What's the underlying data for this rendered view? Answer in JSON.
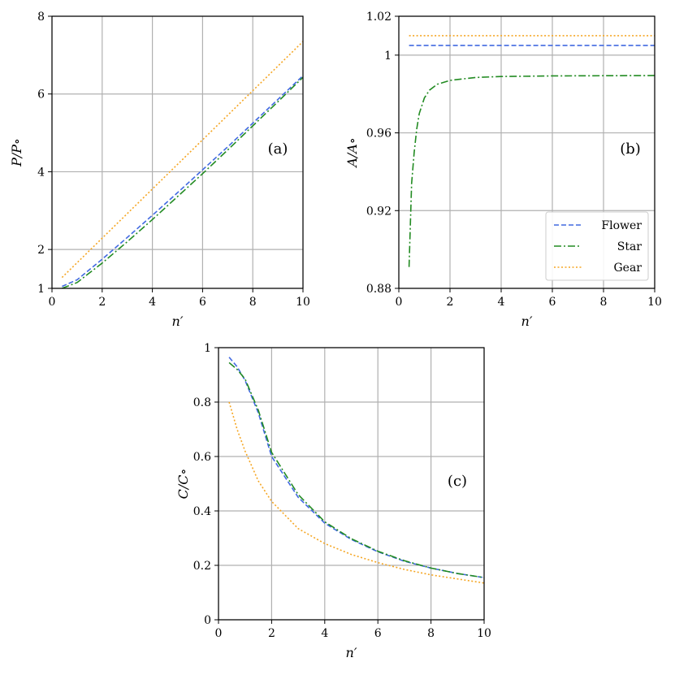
{
  "chart_data": [
    {
      "type": "line",
      "panel": "(a)",
      "xlabel": "n′",
      "ylabel": "P/P∘",
      "xlim": [
        0,
        10
      ],
      "ylim": [
        1,
        8
      ],
      "xticks": [
        0,
        2,
        4,
        6,
        8,
        10
      ],
      "yticks": [
        1,
        2,
        4,
        6,
        8
      ],
      "xtick_labels": [
        "0",
        "2",
        "4",
        "6",
        "8",
        "10"
      ],
      "ytick_labels": [
        "1",
        "2",
        "4",
        "6",
        "8"
      ],
      "grid": true,
      "series": [
        {
          "name": "Flower",
          "color": "#4169e1",
          "dash": "dashed",
          "x": [
            0.4,
            1,
            2,
            3,
            4,
            5,
            6,
            7,
            8,
            9,
            10
          ],
          "y": [
            1.05,
            1.22,
            1.75,
            2.31,
            2.88,
            3.46,
            4.05,
            4.64,
            5.25,
            5.86,
            6.47
          ]
        },
        {
          "name": "Star",
          "color": "#228b22",
          "dash": "dashdot",
          "x": [
            0.4,
            1,
            2,
            3,
            4,
            5,
            6,
            7,
            8,
            9,
            10
          ],
          "y": [
            1.0,
            1.15,
            1.65,
            2.2,
            2.77,
            3.36,
            3.95,
            4.56,
            5.18,
            5.8,
            6.43
          ]
        },
        {
          "name": "Gear",
          "color": "#f5a623",
          "dash": "dotted",
          "x": [
            0.4,
            10
          ],
          "y": [
            1.28,
            7.35
          ]
        }
      ]
    },
    {
      "type": "line",
      "panel": "(b)",
      "xlabel": "n′",
      "ylabel": "A/A∘",
      "xlim": [
        0,
        10
      ],
      "ylim": [
        0.88,
        1.02
      ],
      "xticks": [
        0,
        2,
        4,
        6,
        8,
        10
      ],
      "yticks": [
        0.88,
        0.92,
        0.96,
        1.0,
        1.02
      ],
      "xtick_labels": [
        "0",
        "2",
        "4",
        "6",
        "8",
        "10"
      ],
      "ytick_labels": [
        "0.88",
        "0.92",
        "0.96",
        "1",
        "1.02"
      ],
      "grid": true,
      "legend": "bottom-right",
      "series": [
        {
          "name": "Flower",
          "color": "#4169e1",
          "dash": "dashed",
          "x": [
            0.4,
            10
          ],
          "y": [
            1.005,
            1.005
          ]
        },
        {
          "name": "Star",
          "color": "#228b22",
          "dash": "dashdot",
          "x": [
            0.4,
            0.5,
            0.6,
            0.7,
            0.8,
            1.0,
            1.2,
            1.5,
            2,
            3,
            4,
            6,
            8,
            10
          ],
          "y": [
            0.891,
            0.934,
            0.95,
            0.962,
            0.97,
            0.978,
            0.982,
            0.985,
            0.987,
            0.9885,
            0.989,
            0.9893,
            0.9894,
            0.9895
          ]
        },
        {
          "name": "Gear",
          "color": "#f5a623",
          "dash": "dotted",
          "x": [
            0.4,
            10
          ],
          "y": [
            1.01,
            1.01
          ]
        }
      ]
    },
    {
      "type": "line",
      "panel": "(c)",
      "xlabel": "n′",
      "ylabel": "C/C∘",
      "xlim": [
        0,
        10
      ],
      "ylim": [
        0,
        1
      ],
      "xticks": [
        0,
        2,
        4,
        6,
        8,
        10
      ],
      "yticks": [
        0,
        0.2,
        0.4,
        0.6,
        0.8,
        1
      ],
      "xtick_labels": [
        "0",
        "2",
        "4",
        "6",
        "8",
        "10"
      ],
      "ytick_labels": [
        "0",
        "0.2",
        "0.4",
        "0.6",
        "0.8",
        "1"
      ],
      "grid": true,
      "series": [
        {
          "name": "Flower",
          "color": "#4169e1",
          "dash": "dashed",
          "x": [
            0.4,
            0.7,
            1,
            1.5,
            2,
            3,
            4,
            5,
            6,
            7,
            8,
            9,
            10
          ],
          "y": [
            0.965,
            0.93,
            0.88,
            0.76,
            0.6,
            0.45,
            0.355,
            0.295,
            0.25,
            0.215,
            0.19,
            0.17,
            0.155
          ]
        },
        {
          "name": "Star",
          "color": "#228b22",
          "dash": "dashdot",
          "x": [
            0.4,
            0.7,
            1,
            1.5,
            2,
            3,
            4,
            5,
            6,
            7,
            8,
            9,
            10
          ],
          "y": [
            0.945,
            0.92,
            0.885,
            0.77,
            0.615,
            0.46,
            0.36,
            0.298,
            0.252,
            0.217,
            0.19,
            0.17,
            0.155
          ]
        },
        {
          "name": "Gear",
          "color": "#f5a623",
          "dash": "dotted",
          "x": [
            0.4,
            0.7,
            1,
            1.5,
            2,
            3,
            4,
            5,
            6,
            7,
            8,
            9,
            10
          ],
          "y": [
            0.8,
            0.7,
            0.62,
            0.51,
            0.435,
            0.335,
            0.28,
            0.24,
            0.21,
            0.185,
            0.165,
            0.15,
            0.135
          ]
        }
      ]
    }
  ]
}
